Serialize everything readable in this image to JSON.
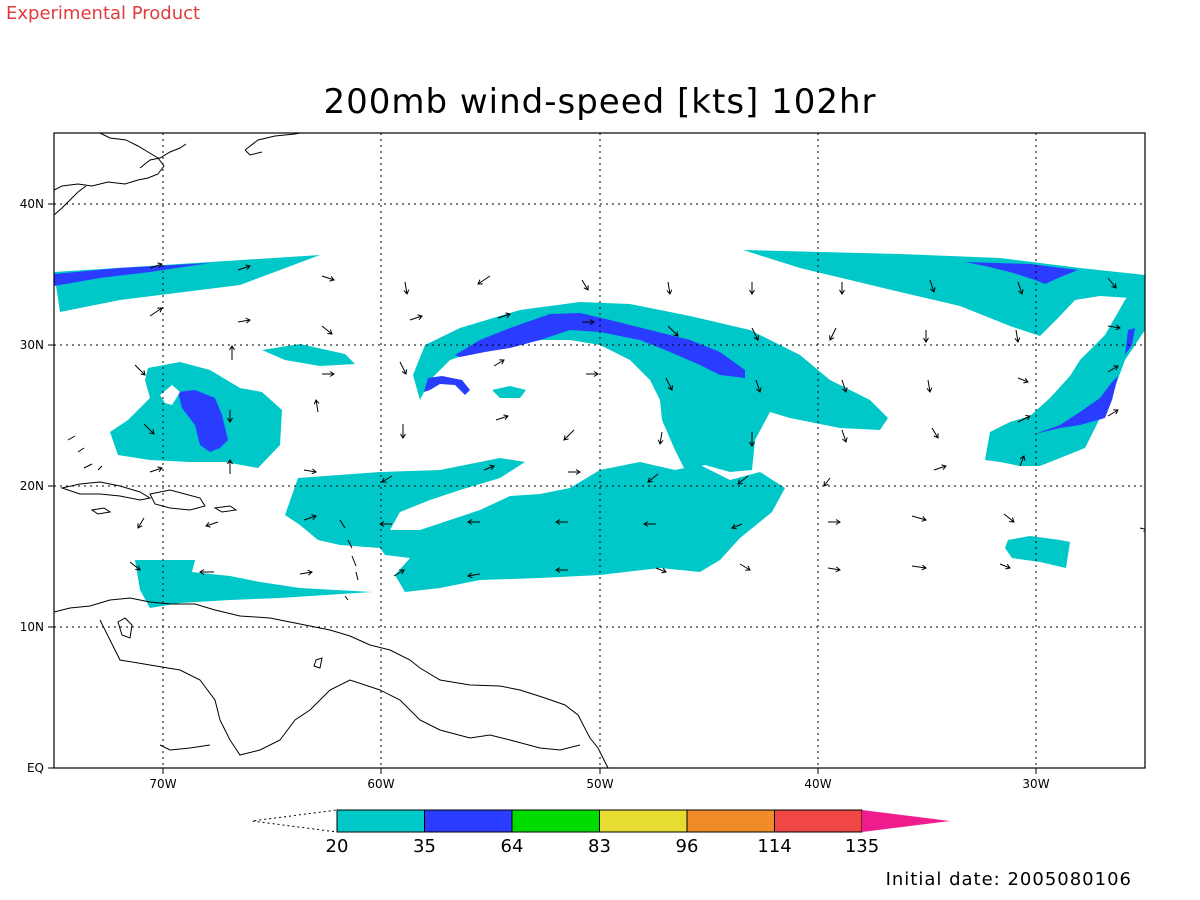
{
  "header": {
    "experimental": "Experimental Product",
    "title": "200mb wind-speed [kts] 102hr"
  },
  "footer": {
    "initial_date": "Initial date: 2005080106"
  },
  "map": {
    "lon_ticks": [
      "70W",
      "60W",
      "50W",
      "40W",
      "30W"
    ],
    "lat_ticks": [
      "40N",
      "30N",
      "20N",
      "10N",
      "EQ"
    ],
    "extent": {
      "lon": [
        -75,
        -25
      ],
      "lat": [
        0,
        45
      ]
    },
    "grid": "dotted"
  },
  "colorbar": {
    "labels": [
      "20",
      "35",
      "64",
      "83",
      "96",
      "114",
      "135"
    ],
    "colors": [
      "#00c8c8",
      "#2a3cff",
      "#00dc00",
      "#e6dc32",
      "#f08c28",
      "#f04646",
      "#ee1c8c"
    ]
  }
}
